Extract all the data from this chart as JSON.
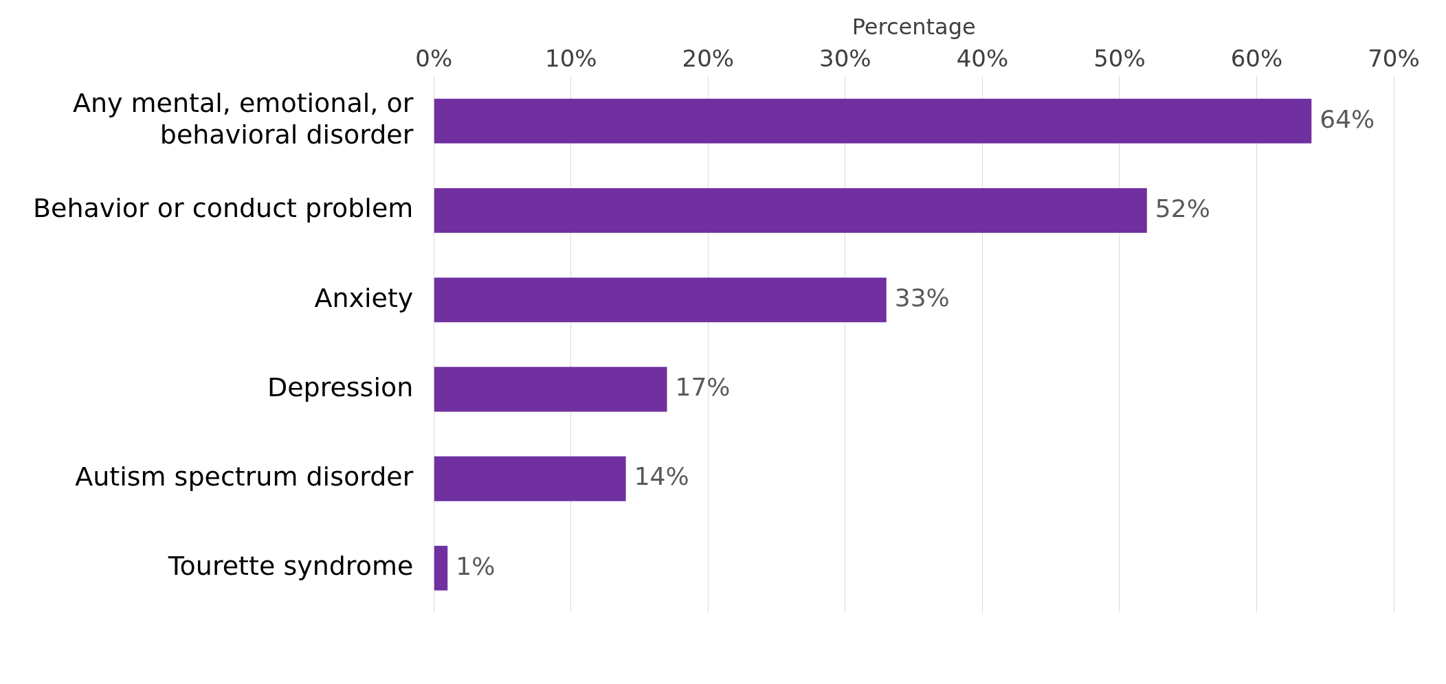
{
  "chart_data": {
    "type": "bar",
    "orientation": "horizontal",
    "xlabel": "Percentage",
    "categories": [
      "Any mental, emotional, or behavioral disorder",
      "Behavior or conduct problem",
      "Anxiety",
      "Depression",
      "Autism spectrum disorder",
      "Tourette syndrome"
    ],
    "values": [
      64,
      52,
      33,
      17,
      14,
      1
    ],
    "value_labels": [
      "64%",
      "52%",
      "33%",
      "17%",
      "14%",
      "1%"
    ],
    "color": "#7030a0",
    "xlim": [
      0,
      70
    ],
    "xticks": [
      {
        "value": 0,
        "label": "0%"
      },
      {
        "value": 10,
        "label": "10%"
      },
      {
        "value": 20,
        "label": "20%"
      },
      {
        "value": 30,
        "label": "30%"
      },
      {
        "value": 40,
        "label": "40%"
      },
      {
        "value": 50,
        "label": "50%"
      },
      {
        "value": 60,
        "label": "60%"
      },
      {
        "value": 70,
        "label": "70%"
      }
    ],
    "grid": "x"
  }
}
